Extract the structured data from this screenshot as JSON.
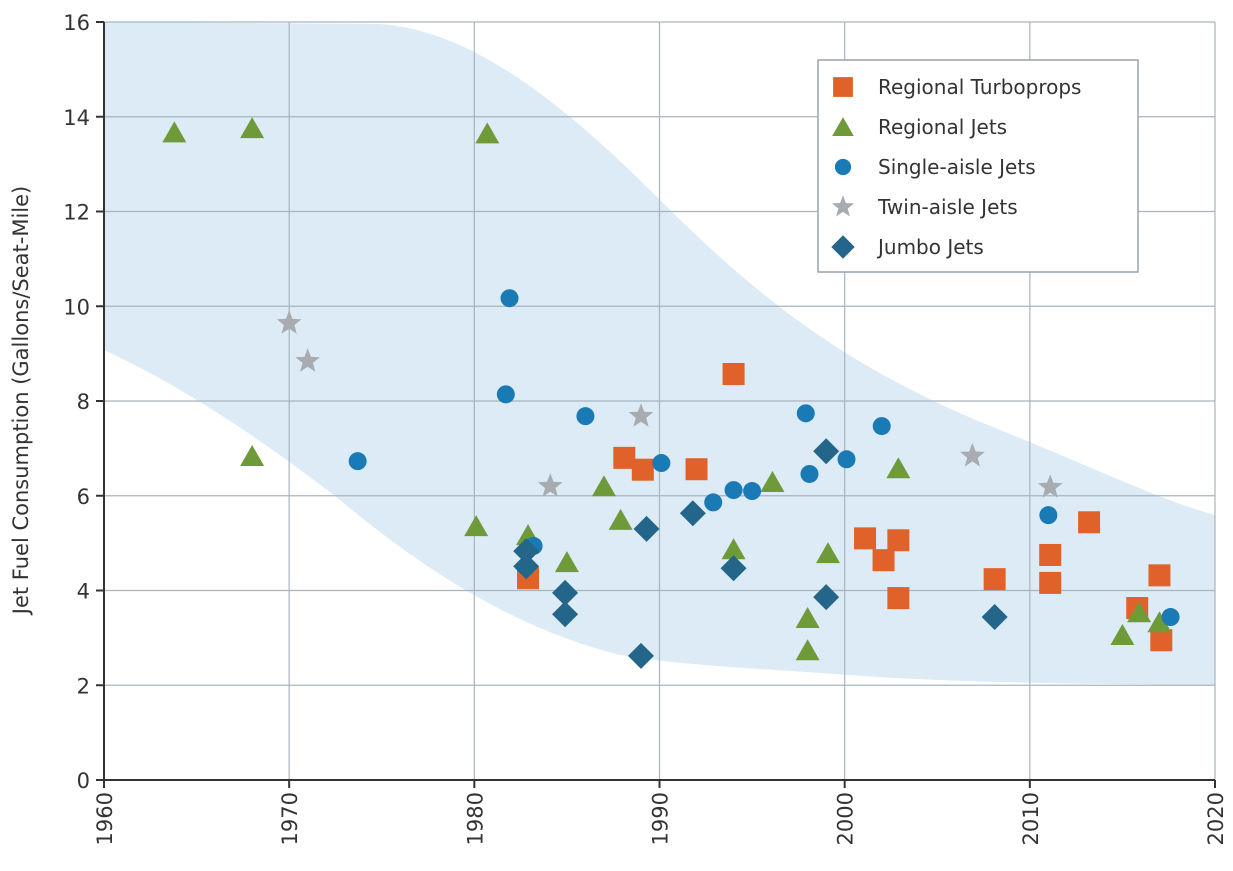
{
  "chart_data": {
    "type": "scatter",
    "y_label": "Jet Fuel Consumption (Gallons/Seat-Mile)",
    "xlim": [
      1960,
      2020
    ],
    "xticks": [
      1960,
      1970,
      1980,
      1990,
      2000,
      2010,
      2020
    ],
    "ylim": [
      0,
      16
    ],
    "yticks": [
      0,
      2,
      4,
      6,
      8,
      10,
      12,
      14,
      16
    ],
    "grid": true,
    "legend": "upper right",
    "series": [
      {
        "name": "Regional Turboprops",
        "color": "#e0622a",
        "marker": "square",
        "x": [
          1982.9,
          1988.1,
          1989.1,
          1992.0,
          1994.0,
          2001.1,
          2002.1,
          2002.9,
          2002.9,
          2008.1,
          2011.1,
          2011.1,
          2013.2,
          2015.8,
          2017.0,
          2017.1
        ],
        "values": [
          4.26,
          6.8,
          6.55,
          6.56,
          8.57,
          5.1,
          4.64,
          5.06,
          3.84,
          4.24,
          4.75,
          4.16,
          5.44,
          3.63,
          4.32,
          2.95
        ]
      },
      {
        "name": "Regional Jets",
        "color": "#6f9a3a",
        "marker": "triangle",
        "x": [
          1963.8,
          1968.0,
          1968.0,
          1980.1,
          1980.7,
          1982.9,
          1985.0,
          1987.0,
          1987.9,
          1994.0,
          1996.1,
          1998.0,
          1998.0,
          1999.1,
          2002.9,
          2015.0,
          2015.9,
          2017.0
        ],
        "values": [
          13.67,
          13.76,
          6.84,
          5.36,
          13.65,
          5.17,
          4.6,
          6.2,
          5.49,
          4.87,
          6.29,
          3.42,
          2.74,
          4.79,
          6.58,
          3.06,
          3.54,
          3.33
        ]
      },
      {
        "name": "Single-aisle Jets",
        "color": "#1a7ab5",
        "marker": "circle",
        "x": [
          1973.7,
          1981.9,
          1981.7,
          1983.2,
          1986.0,
          1990.1,
          1992.9,
          1994.0,
          1995.0,
          1997.9,
          1998.1,
          2000.1,
          2002.0,
          2011.0,
          2017.6
        ],
        "values": [
          6.73,
          10.17,
          8.14,
          4.94,
          7.68,
          6.69,
          5.86,
          6.12,
          6.1,
          7.74,
          6.46,
          6.77,
          7.47,
          5.59,
          3.44
        ]
      },
      {
        "name": "Twin-aisle Jets",
        "color": "#a8acb0",
        "marker": "star",
        "x": [
          1970.0,
          1971.0,
          1984.1,
          1989.0,
          2006.9,
          2011.1
        ],
        "values": [
          9.64,
          8.84,
          6.2,
          7.68,
          6.84,
          6.18
        ]
      },
      {
        "name": "Jumbo Jets",
        "color": "#23668a",
        "marker": "diamond",
        "x": [
          1982.8,
          1982.8,
          1984.9,
          1984.9,
          1989.3,
          1989.0,
          1991.8,
          1994.0,
          1999.0,
          1999.0,
          2008.1
        ],
        "values": [
          4.83,
          4.51,
          3.95,
          3.5,
          5.3,
          2.62,
          5.63,
          4.47,
          6.94,
          3.86,
          3.44
        ]
      }
    ]
  }
}
